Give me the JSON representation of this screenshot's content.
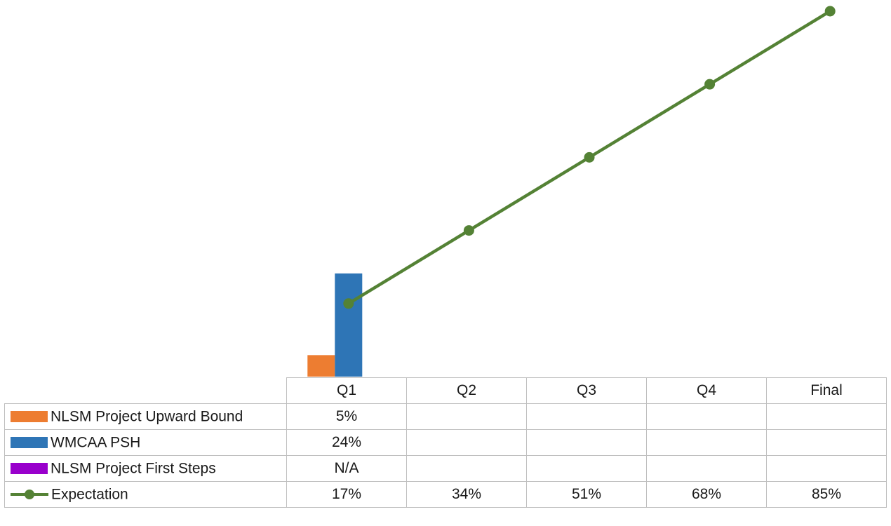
{
  "chart_data": {
    "type": "bar",
    "categories": [
      "Q1",
      "Q2",
      "Q3",
      "Q4",
      "Final"
    ],
    "ylim": [
      0,
      0.88
    ],
    "grid": false,
    "legend": "table-left",
    "series": [
      {
        "name": "NLSM Project Upward Bound",
        "kind": "bar",
        "color": "#ED7D31",
        "values": [
          0.05,
          null,
          null,
          null,
          null
        ],
        "labels": [
          "5%",
          "",
          "",
          "",
          ""
        ]
      },
      {
        "name": "WMCAA PSH",
        "kind": "bar",
        "color": "#2E75B6",
        "values": [
          0.24,
          null,
          null,
          null,
          null
        ],
        "labels": [
          "24%",
          "",
          "",
          "",
          ""
        ]
      },
      {
        "name": "NLSM Project First Steps",
        "kind": "bar",
        "color": "#9900CC",
        "values": [
          null,
          null,
          null,
          null,
          null
        ],
        "labels": [
          "N/A",
          "",
          "",
          "",
          ""
        ]
      },
      {
        "name": "Expectation",
        "kind": "line",
        "color": "#548235",
        "values": [
          0.17,
          0.34,
          0.51,
          0.68,
          0.85
        ],
        "labels": [
          "17%",
          "34%",
          "51%",
          "68%",
          "85%"
        ]
      }
    ]
  }
}
